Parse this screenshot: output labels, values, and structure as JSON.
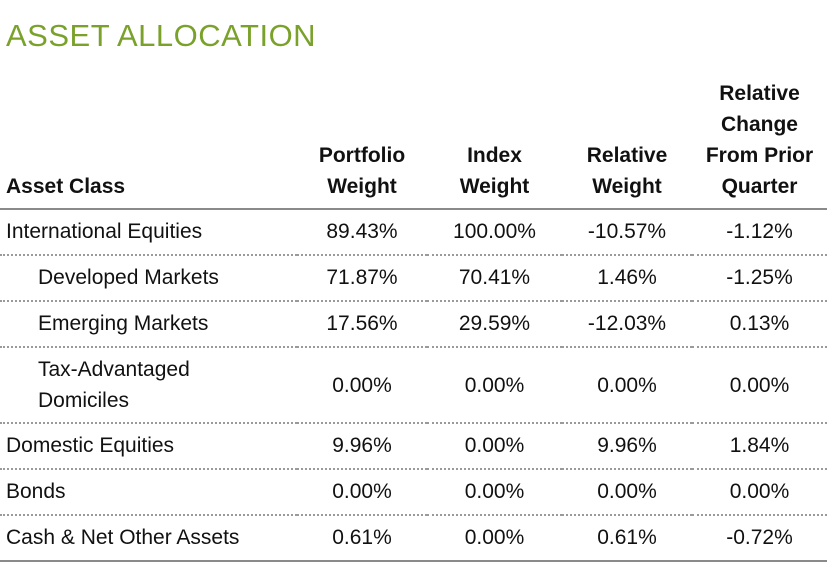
{
  "title": "ASSET ALLOCATION",
  "header": {
    "asset_class": "Asset Class",
    "portfolio_weight": [
      "Portfolio",
      "Weight"
    ],
    "index_weight": [
      "Index",
      "Weight"
    ],
    "relative_weight": [
      "Relative",
      "Weight"
    ],
    "relative_change": [
      "Relative",
      "Change",
      "From Prior",
      "Quarter"
    ]
  },
  "rows": [
    {
      "label": "International Equities",
      "portfolio": "89.43%",
      "index": "100.00%",
      "relative": "-10.57%",
      "change": "-1.12%"
    },
    {
      "label": "Developed Markets",
      "portfolio": "71.87%",
      "index": "70.41%",
      "relative": "1.46%",
      "change": "-1.25%"
    },
    {
      "label": "Emerging Markets",
      "portfolio": "17.56%",
      "index": "29.59%",
      "relative": "-12.03%",
      "change": "0.13%"
    },
    {
      "label": [
        "Tax-Advantaged",
        "Domiciles"
      ],
      "portfolio": "0.00%",
      "index": "0.00%",
      "relative": "0.00%",
      "change": "0.00%"
    },
    {
      "label": "Domestic Equities",
      "portfolio": "9.96%",
      "index": "0.00%",
      "relative": "9.96%",
      "change": "1.84%"
    },
    {
      "label": "Bonds",
      "portfolio": "0.00%",
      "index": "0.00%",
      "relative": "0.00%",
      "change": "0.00%"
    },
    {
      "label": "Cash & Net Other Assets",
      "portfolio": "0.61%",
      "index": "0.00%",
      "relative": "0.61%",
      "change": "-0.72%"
    }
  ],
  "colors": {
    "title": "#7aa22b",
    "rule": "#8a8a8a"
  }
}
